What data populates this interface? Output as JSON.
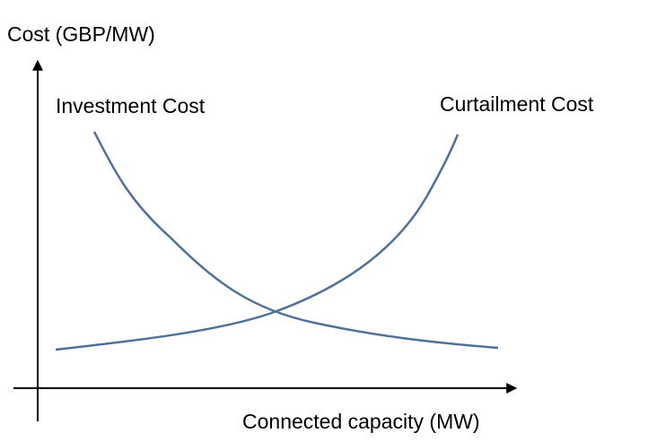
{
  "y_axis": {
    "label": "Cost (GBP/MW)"
  },
  "x_axis": {
    "label": "Connected capacity (MW)"
  },
  "curves": [
    {
      "label": "Investment Cost"
    },
    {
      "label": "Curtailment Cost"
    }
  ]
}
